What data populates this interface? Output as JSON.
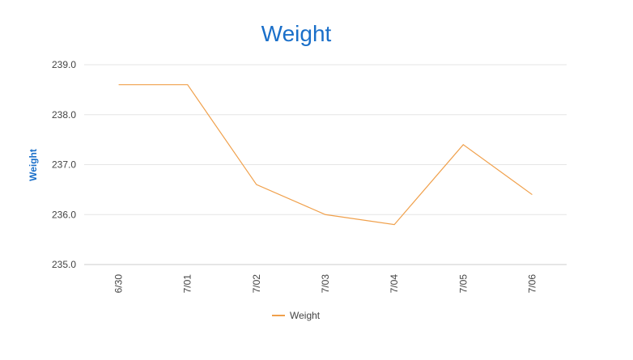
{
  "chart_data": {
    "type": "line",
    "title": "Weight",
    "xlabel": "",
    "ylabel": "Weight",
    "categories": [
      "6/30",
      "7/01",
      "7/02",
      "7/03",
      "7/04",
      "7/05",
      "7/06"
    ],
    "series": [
      {
        "name": "Weight",
        "color": "#f0a04b",
        "values": [
          238.6,
          238.6,
          236.6,
          236.0,
          235.8,
          237.4,
          236.4
        ]
      }
    ],
    "ylim": [
      235.0,
      239.0
    ],
    "yticks": [
      "235.0",
      "236.0",
      "237.0",
      "238.0",
      "239.0"
    ],
    "grid": true,
    "legend_position": "bottom",
    "colors": {
      "title": "#1a6fc9",
      "ylabel": "#1a6fc9",
      "grid": "#e6e6e6",
      "axis": "#cccccc",
      "tick": "#444444"
    }
  }
}
